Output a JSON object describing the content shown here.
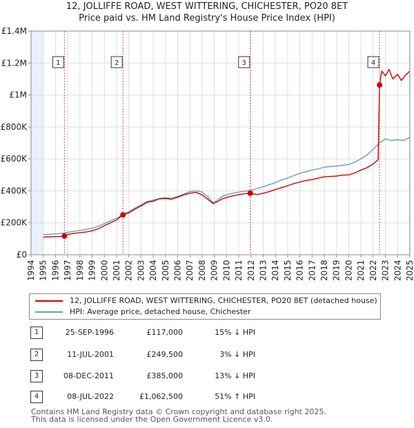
{
  "title_line1": "12, JOLLIFFE ROAD, WEST WITTERING, CHICHESTER, PO20 8ET",
  "title_line2": "Price paid vs. HM Land Registry's House Price Index (HPI)",
  "legend": {
    "property_label": "12, JOLLIFFE ROAD, WEST WITTERING, CHICHESTER, PO20 8ET (detached house)",
    "hpi_label": "HPI: Average price, detached house, Chichester"
  },
  "colors": {
    "property": "#cc0000",
    "hpi": "#6699cc",
    "shade": "#eaf0fa",
    "marker_line": "#cc0000",
    "grid": "#dddddd"
  },
  "transactions": [
    {
      "num": "1",
      "date": "25-SEP-1996",
      "price": "£117,000",
      "hpi": "15% ↓ HPI"
    },
    {
      "num": "2",
      "date": "11-JUL-2001",
      "price": "£249,500",
      "hpi": "3% ↓ HPI"
    },
    {
      "num": "3",
      "date": "08-DEC-2011",
      "price": "£385,000",
      "hpi": "13% ↓ HPI"
    },
    {
      "num": "4",
      "date": "08-JUL-2022",
      "price": "£1,062,500",
      "hpi": "51% ↑ HPI"
    }
  ],
  "footer_line1": "Contains HM Land Registry data © Crown copyright and database right 2025.",
  "footer_line2": "This data is licensed under the Open Government Licence v3.0.",
  "chart_data": {
    "type": "line",
    "title": "12, JOLLIFFE ROAD, WEST WITTERING, CHICHESTER, PO20 8ET",
    "subtitle": "Price paid vs. HM Land Registry's House Price Index (HPI)",
    "xlim": [
      1994,
      2025
    ],
    "ylim": [
      0,
      1400000
    ],
    "x_ticks": [
      1994,
      1995,
      1996,
      1997,
      1998,
      1999,
      2000,
      2001,
      2002,
      2003,
      2004,
      2005,
      2006,
      2007,
      2008,
      2009,
      2010,
      2011,
      2012,
      2013,
      2014,
      2015,
      2016,
      2017,
      2018,
      2019,
      2020,
      2021,
      2022,
      2023,
      2024,
      2025
    ],
    "y_ticks": [
      0,
      200000,
      400000,
      600000,
      800000,
      1000000,
      1200000,
      1400000
    ],
    "y_tick_labels": [
      "£0",
      "£200K",
      "£400K",
      "£600K",
      "£800K",
      "£1M",
      "£1.2M",
      "£1.4M"
    ],
    "shaded_regions": [
      [
        1994.0,
        1995.0
      ],
      [
        2024.9,
        2025.0
      ]
    ],
    "grid": true,
    "legend_position": "bottom",
    "series": [
      {
        "name": "12, JOLLIFFE ROAD, WEST WITTERING, CHICHESTER, PO20 8ET (detached house)",
        "x": [
          1995.0,
          1995.5,
          1996.0,
          1996.5,
          1996.73,
          1997.0,
          1997.5,
          1998.0,
          1998.5,
          1999.0,
          1999.5,
          2000.0,
          2000.5,
          2001.0,
          2001.52,
          2002.0,
          2002.5,
          2003.0,
          2003.5,
          2004.0,
          2004.5,
          2005.0,
          2005.5,
          2006.0,
          2006.5,
          2007.0,
          2007.5,
          2008.0,
          2008.5,
          2008.9,
          2009.2,
          2009.6,
          2010.0,
          2010.5,
          2011.0,
          2011.5,
          2011.94,
          2012.5,
          2013.0,
          2013.5,
          2014.0,
          2014.5,
          2015.0,
          2015.5,
          2016.0,
          2016.5,
          2017.0,
          2017.5,
          2018.0,
          2018.5,
          2019.0,
          2019.5,
          2020.0,
          2020.5,
          2021.0,
          2021.5,
          2022.0,
          2022.4,
          2022.52,
          2022.7,
          2023.0,
          2023.3,
          2023.6,
          2024.0,
          2024.3,
          2024.6,
          2025.0
        ],
        "values": [
          110000,
          112000,
          113000,
          115000,
          117000,
          128000,
          133000,
          138000,
          142000,
          150000,
          162000,
          182000,
          200000,
          218000,
          249500,
          262000,
          285000,
          305000,
          328000,
          335000,
          350000,
          352000,
          348000,
          360000,
          375000,
          385000,
          390000,
          375000,
          345000,
          320000,
          330000,
          348000,
          358000,
          368000,
          376000,
          382000,
          385000,
          377000,
          385000,
          395000,
          408000,
          420000,
          432000,
          445000,
          455000,
          465000,
          470000,
          480000,
          488000,
          490000,
          492000,
          498000,
          500000,
          512000,
          530000,
          545000,
          568000,
          595000,
          1062500,
          1150000,
          1120000,
          1160000,
          1100000,
          1130000,
          1090000,
          1120000,
          1150000
        ]
      },
      {
        "name": "HPI: Average price, detached house, Chichester",
        "x": [
          1995.0,
          1995.5,
          1996.0,
          1996.5,
          1997.0,
          1997.5,
          1998.0,
          1998.5,
          1999.0,
          1999.5,
          2000.0,
          2000.5,
          2001.0,
          2001.5,
          2002.0,
          2002.5,
          2003.0,
          2003.5,
          2004.0,
          2004.5,
          2005.0,
          2005.5,
          2006.0,
          2006.5,
          2007.0,
          2007.5,
          2008.0,
          2008.5,
          2008.9,
          2009.2,
          2009.6,
          2010.0,
          2010.5,
          2011.0,
          2011.5,
          2012.0,
          2012.5,
          2013.0,
          2013.5,
          2014.0,
          2014.5,
          2015.0,
          2015.5,
          2016.0,
          2016.5,
          2017.0,
          2017.5,
          2018.0,
          2018.5,
          2019.0,
          2019.5,
          2020.0,
          2020.5,
          2021.0,
          2021.5,
          2022.0,
          2022.5,
          2023.0,
          2023.5,
          2024.0,
          2024.5,
          2025.0
        ],
        "values": [
          126000,
          128000,
          131000,
          134000,
          140000,
          146000,
          152000,
          158000,
          165000,
          178000,
          195000,
          212000,
          228000,
          250000,
          270000,
          292000,
          312000,
          333000,
          342000,
          352000,
          356000,
          353000,
          365000,
          380000,
          395000,
          400000,
          392000,
          360000,
          325000,
          340000,
          362000,
          375000,
          385000,
          392000,
          398000,
          402000,
          415000,
          425000,
          438000,
          452000,
          468000,
          480000,
          495000,
          510000,
          520000,
          530000,
          538000,
          548000,
          552000,
          555000,
          560000,
          565000,
          580000,
          600000,
          625000,
          660000,
          700000,
          725000,
          715000,
          720000,
          715000,
          735000
        ]
      }
    ],
    "sale_markers": [
      {
        "label": "1",
        "x": 1996.73,
        "value": 117000
      },
      {
        "label": "2",
        "x": 2001.52,
        "value": 249500
      },
      {
        "label": "3",
        "x": 2011.94,
        "value": 385000
      },
      {
        "label": "4",
        "x": 2022.52,
        "value": 1062500
      }
    ]
  }
}
